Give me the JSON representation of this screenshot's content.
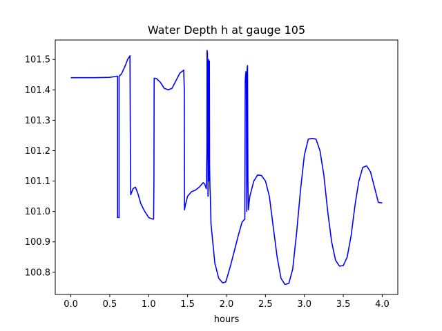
{
  "chart_data": {
    "type": "line",
    "title": "Water Depth h at gauge 105",
    "xlabel": "hours",
    "ylabel": "",
    "xlim": [
      -0.2,
      4.2
    ],
    "ylim": [
      100.727,
      101.564
    ],
    "xticks": [
      0.0,
      0.5,
      1.0,
      1.5,
      2.0,
      2.5,
      3.0,
      3.5,
      4.0
    ],
    "xtick_labels": [
      "0.0",
      "0.5",
      "1.0",
      "1.5",
      "2.0",
      "2.5",
      "3.0",
      "3.5",
      "4.0"
    ],
    "yticks": [
      100.8,
      100.9,
      101.0,
      101.1,
      101.2,
      101.3,
      101.4,
      101.5
    ],
    "ytick_labels": [
      "100.8",
      "100.9",
      "101.0",
      "101.1",
      "101.2",
      "101.3",
      "101.4",
      "101.5"
    ],
    "grid": false,
    "series": [
      {
        "color": "#0000ff",
        "x": [
          0.0,
          0.3,
          0.5,
          0.597,
          0.6,
          0.6,
          0.615,
          0.62,
          0.62,
          0.65,
          0.7,
          0.73,
          0.76,
          0.765,
          0.77,
          0.8,
          0.83,
          0.86,
          0.9,
          0.95,
          1.0,
          1.05,
          1.063,
          1.068,
          1.07,
          1.08,
          1.1,
          1.15,
          1.2,
          1.25,
          1.3,
          1.35,
          1.4,
          1.45,
          1.458,
          1.46,
          1.47,
          1.5,
          1.55,
          1.6,
          1.65,
          1.7,
          1.72,
          1.74,
          1.748,
          1.75,
          1.755,
          1.758,
          1.762,
          1.765,
          1.768,
          1.772,
          1.776,
          1.78,
          1.783,
          1.787,
          1.792,
          1.8,
          1.85,
          1.9,
          1.95,
          1.99,
          2.05,
          2.1,
          2.15,
          2.2,
          2.235,
          2.24,
          2.245,
          2.25,
          2.255,
          2.26,
          2.265,
          2.27,
          2.275,
          2.28,
          2.285,
          2.29,
          2.3,
          2.35,
          2.4,
          2.45,
          2.5,
          2.55,
          2.6,
          2.65,
          2.7,
          2.75,
          2.8,
          2.85,
          2.9,
          2.95,
          3.0,
          3.05,
          3.1,
          3.15,
          3.2,
          3.25,
          3.3,
          3.35,
          3.4,
          3.45,
          3.5,
          3.55,
          3.6,
          3.65,
          3.7,
          3.75,
          3.8,
          3.85,
          3.9,
          3.95,
          4.0
        ],
        "y": [
          101.44,
          101.44,
          101.441,
          101.445,
          101.445,
          100.98,
          100.98,
          100.98,
          101.445,
          101.452,
          101.48,
          101.5,
          101.512,
          101.2,
          101.055,
          101.075,
          101.08,
          101.06,
          101.025,
          101.0,
          100.98,
          100.975,
          100.975,
          101.1,
          101.438,
          101.438,
          101.437,
          101.425,
          101.405,
          101.4,
          101.405,
          101.43,
          101.455,
          101.465,
          101.4,
          101.005,
          101.02,
          101.05,
          101.065,
          101.07,
          101.08,
          101.095,
          101.09,
          101.075,
          101.2,
          101.53,
          101.52,
          101.45,
          101.05,
          101.35,
          101.5,
          101.1,
          101.4,
          101.495,
          101.15,
          101.08,
          101.05,
          100.96,
          100.83,
          100.78,
          100.765,
          100.768,
          100.82,
          100.87,
          100.92,
          100.965,
          100.975,
          101.43,
          101.45,
          101.46,
          101.44,
          101.0,
          101.47,
          101.48,
          101.1,
          101.005,
          101.015,
          101.03,
          101.05,
          101.1,
          101.12,
          101.118,
          101.1,
          101.05,
          100.95,
          100.85,
          100.78,
          100.76,
          100.763,
          100.81,
          100.93,
          101.07,
          101.185,
          101.238,
          101.24,
          101.238,
          101.2,
          101.12,
          101.0,
          100.9,
          100.84,
          100.82,
          100.822,
          100.85,
          100.92,
          101.02,
          101.1,
          101.145,
          101.15,
          101.13,
          101.08,
          101.03,
          101.028
        ]
      }
    ]
  }
}
